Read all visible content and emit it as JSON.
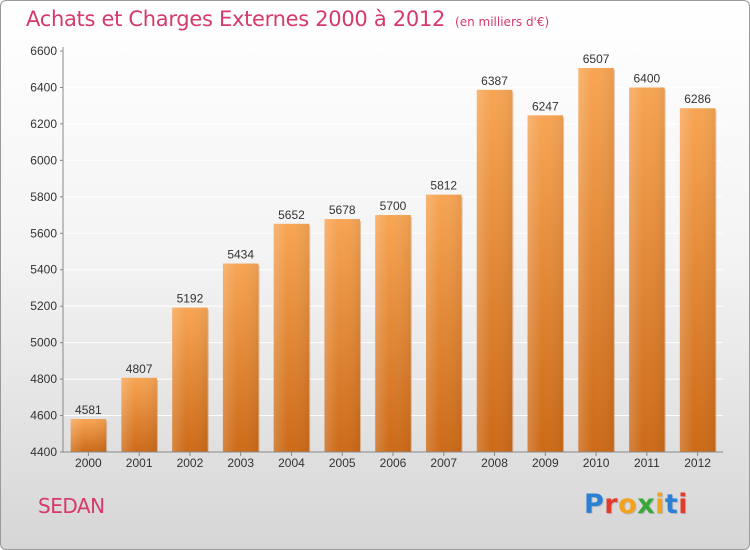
{
  "title": "Achats et Charges Externes 2000 à 2012",
  "unit_note": "(en milliers d'€)",
  "location": "SEDAN",
  "logo": {
    "text": "Proxiti",
    "letter_colors": [
      "#2b7fd4",
      "#e23b2b",
      "#f2a21c",
      "#3aa83a",
      "#f2a21c",
      "#2b7fd4",
      "#e23b2b"
    ]
  },
  "colors": {
    "title": "#d63a6a",
    "bar_top": "#f7a554",
    "bar_bottom": "#cc6a18",
    "grid": "#ffffff",
    "axis_text": "#333333"
  },
  "chart_data": {
    "type": "bar",
    "title": "Achats et Charges Externes 2000 à 2012",
    "xlabel": "",
    "ylabel": "",
    "categories": [
      "2000",
      "2001",
      "2002",
      "2003",
      "2004",
      "2005",
      "2006",
      "2007",
      "2008",
      "2009",
      "2010",
      "2011",
      "2012"
    ],
    "values": [
      4581,
      4807,
      5192,
      5434,
      5652,
      5678,
      5700,
      5812,
      6387,
      6247,
      6507,
      6400,
      6286
    ],
    "ylim": [
      4400,
      6600
    ],
    "yticks": [
      4400,
      4600,
      4800,
      5000,
      5200,
      5400,
      5600,
      5800,
      6000,
      6200,
      6400,
      6600
    ],
    "grid": true,
    "data_labels": true
  }
}
